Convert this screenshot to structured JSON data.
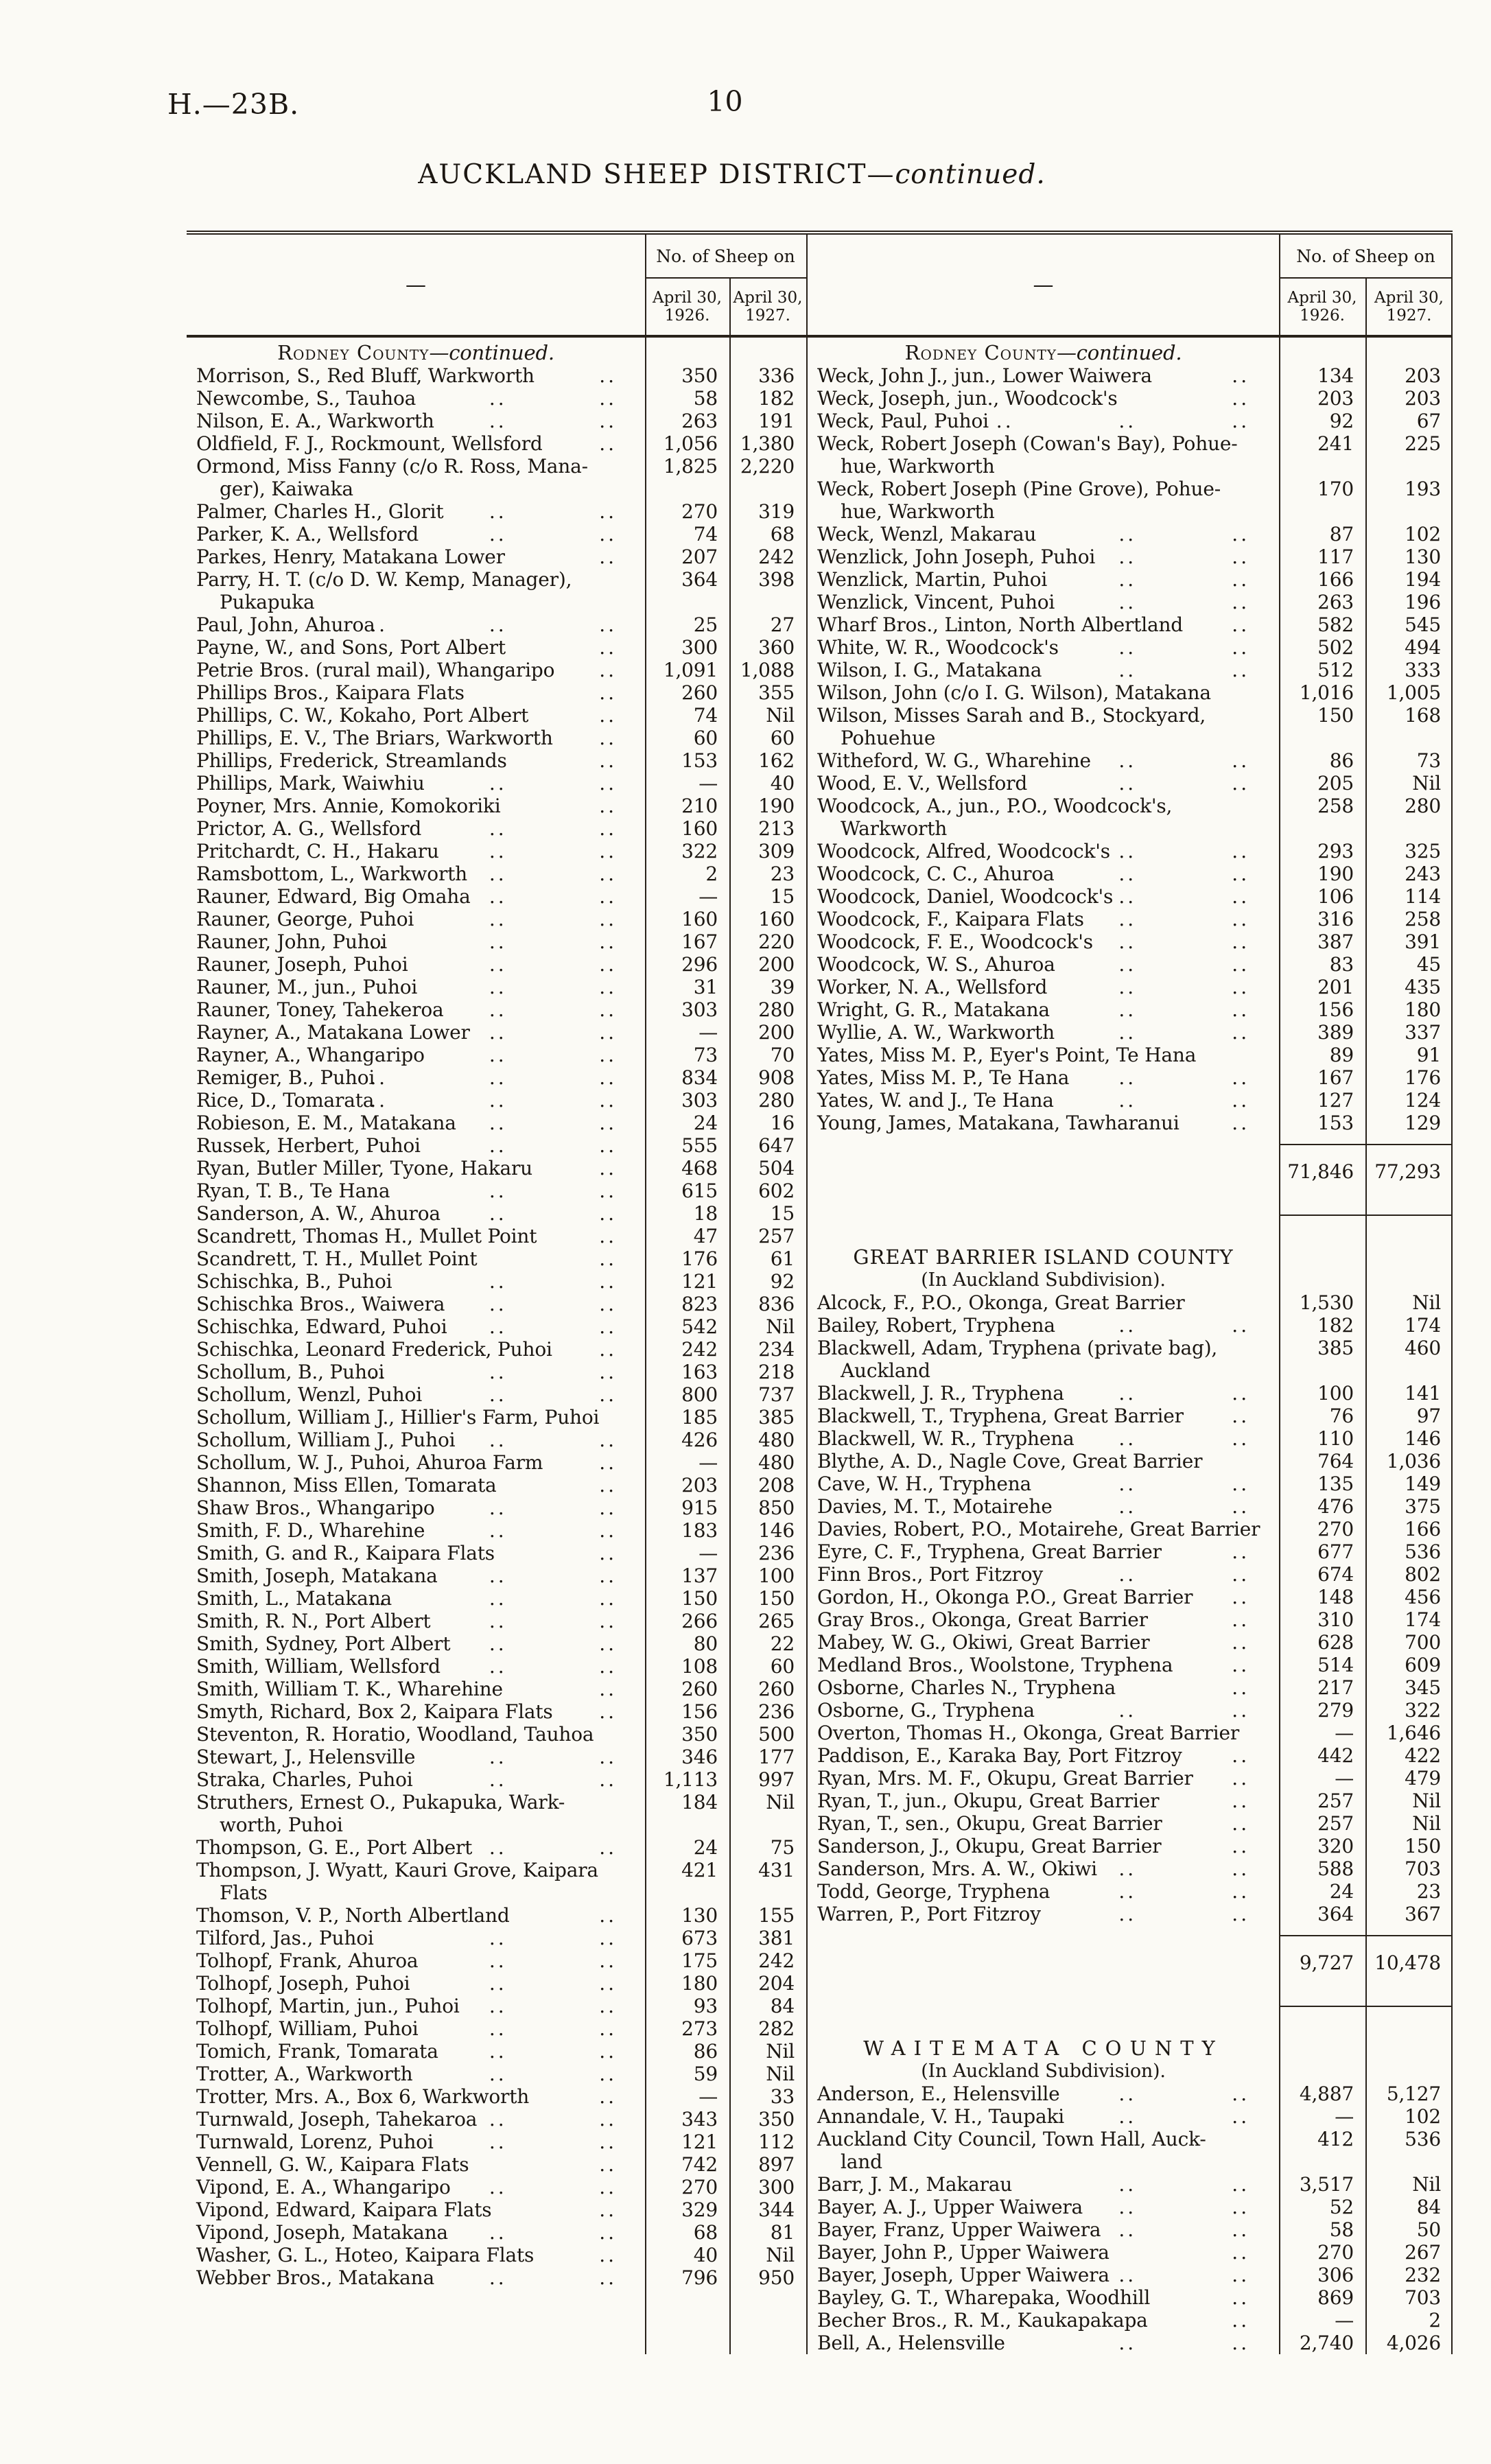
{
  "page": {
    "doc_number": "H.—23B.",
    "page_number": "10",
    "title_main": "AUCKLAND SHEEP DISTRICT—",
    "title_italic": "continued.",
    "header": {
      "name_placeholder": "—",
      "group_label": "No. of Sheep on",
      "col1": "April 30,\n1926.",
      "col2": "April 30,\n1927."
    },
    "leader_glyph": ".."
  },
  "left": {
    "sections": [
      {
        "heading": {
          "sc": "Rodney County",
          "cont": "—continued."
        },
        "rows": [
          [
            "Morrison, S., Red Bluff, Warkworth",
            "350",
            "336"
          ],
          [
            "Newcombe, S., Tauhoa",
            "58",
            "182"
          ],
          [
            "Nilson, E. A., Warkworth",
            "263",
            "191"
          ],
          [
            "Oldfield, F. J., Rockmount, Wellsford",
            "1,056",
            "1,380"
          ],
          [
            "Ormond, Miss Fanny (c/o R. Ross, Mana-\nger), Kaiwaka",
            "1,825",
            "2,220"
          ],
          [
            "Palmer, Charles H., Glorit",
            "270",
            "319"
          ],
          [
            "Parker, K. A., Wellsford",
            "74",
            "68"
          ],
          [
            "Parkes, Henry, Matakana Lower",
            "207",
            "242"
          ],
          [
            "Parry, H. T. (c/o D. W. Kemp, Manager),\nPukapuka",
            "364",
            "398"
          ],
          [
            "Paul, John, Ahuroa",
            "25",
            "27"
          ],
          [
            "Payne, W., and Sons, Port Albert",
            "300",
            "360"
          ],
          [
            "Petrie Bros. (rural mail), Whangaripo",
            "1,091",
            "1,088"
          ],
          [
            "Phillips Bros., Kaipara Flats",
            "260",
            "355"
          ],
          [
            "Phillips, C. W., Kokaho, Port Albert",
            "74",
            "Nil"
          ],
          [
            "Phillips, E. V., The Briars, Warkworth",
            "60",
            "60"
          ],
          [
            "Phillips, Frederick, Streamlands",
            "153",
            "162"
          ],
          [
            "Phillips, Mark, Waiwhiu",
            "—",
            "40"
          ],
          [
            "Poyner, Mrs. Annie, Komokoriki",
            "210",
            "190"
          ],
          [
            "Prictor, A. G., Wellsford",
            "160",
            "213"
          ],
          [
            "Pritchardt, C. H., Hakaru",
            "322",
            "309"
          ],
          [
            "Ramsbottom, L., Warkworth",
            "2",
            "23"
          ],
          [
            "Rauner, Edward, Big Omaha",
            "—",
            "15"
          ],
          [
            "Rauner, George, Puhoi",
            "160",
            "160"
          ],
          [
            "Rauner, John, Puhoi",
            "167",
            "220"
          ],
          [
            "Rauner, Joseph, Puhoi",
            "296",
            "200"
          ],
          [
            "Rauner, M., jun., Puhoi",
            "31",
            "39"
          ],
          [
            "Rauner, Toney, Tahekeroa",
            "303",
            "280"
          ],
          [
            "Rayner, A., Matakana Lower",
            "—",
            "200"
          ],
          [
            "Rayner, A., Whangaripo",
            "73",
            "70"
          ],
          [
            "Remiger, B., Puhoi",
            "834",
            "908"
          ],
          [
            "Rice, D., Tomarata",
            "303",
            "280"
          ],
          [
            "Robieson, E. M., Matakana",
            "24",
            "16"
          ],
          [
            "Russek, Herbert, Puhoi",
            "555",
            "647"
          ],
          [
            "Ryan, Butler Miller, Tyone, Hakaru",
            "468",
            "504"
          ],
          [
            "Ryan, T. B., Te Hana",
            "615",
            "602"
          ],
          [
            "Sanderson, A. W., Ahuroa",
            "18",
            "15"
          ],
          [
            "Scandrett, Thomas H., Mullet Point",
            "47",
            "257"
          ],
          [
            "Scandrett, T. H., Mullet Point",
            "176",
            "61"
          ],
          [
            "Schischka, B., Puhoi",
            "121",
            "92"
          ],
          [
            "Schischka Bros., Waiwera",
            "823",
            "836"
          ],
          [
            "Schischka, Edward, Puhoi",
            "542",
            "Nil"
          ],
          [
            "Schischka, Leonard Frederick, Puhoi",
            "242",
            "234"
          ],
          [
            "Schollum, B., Puhoi",
            "163",
            "218"
          ],
          [
            "Schollum, Wenzl, Puhoi",
            "800",
            "737"
          ],
          [
            "Schollum, William J., Hillier's Farm, Puhoi",
            "185",
            "385"
          ],
          [
            "Schollum, William J., Puhoi",
            "426",
            "480"
          ],
          [
            "Schollum, W. J., Puhoi, Ahuroa Farm",
            "—",
            "480"
          ],
          [
            "Shannon, Miss Ellen, Tomarata",
            "203",
            "208"
          ],
          [
            "Shaw Bros., Whangaripo",
            "915",
            "850"
          ],
          [
            "Smith, F. D., Wharehine",
            "183",
            "146"
          ],
          [
            "Smith, G. and R., Kaipara Flats",
            "—",
            "236"
          ],
          [
            "Smith, Joseph, Matakana",
            "137",
            "100"
          ],
          [
            "Smith, L., Matakana",
            "150",
            "150"
          ],
          [
            "Smith, R. N., Port Albert",
            "266",
            "265"
          ],
          [
            "Smith, Sydney, Port Albert",
            "80",
            "22"
          ],
          [
            "Smith, William, Wellsford",
            "108",
            "60"
          ],
          [
            "Smith, William T. K., Wharehine",
            "260",
            "260"
          ],
          [
            "Smyth, Richard, Box 2, Kaipara Flats",
            "156",
            "236"
          ],
          [
            "Steventon, R. Horatio, Woodland, Tauhoa",
            "350",
            "500"
          ],
          [
            "Stewart, J., Helensville",
            "346",
            "177"
          ],
          [
            "Straka, Charles, Puhoi",
            "1,113",
            "997"
          ],
          [
            "Struthers, Ernest O., Pukapuka, Wark-\nworth, Puhoi",
            "184",
            "Nil"
          ],
          [
            "Thompson, G. E., Port Albert",
            "24",
            "75"
          ],
          [
            "Thompson, J. Wyatt, Kauri Grove, Kaipara\nFlats",
            "421",
            "431"
          ],
          [
            "Thomson, V. P., North Albertland",
            "130",
            "155"
          ],
          [
            "Tilford, Jas., Puhoi",
            "673",
            "381"
          ],
          [
            "Tolhopf, Frank, Ahuroa",
            "175",
            "242"
          ],
          [
            "Tolhopf, Joseph, Puhoi",
            "180",
            "204"
          ],
          [
            "Tolhopf, Martin, jun., Puhoi",
            "93",
            "84"
          ],
          [
            "Tolhopf, William, Puhoi",
            "273",
            "282"
          ],
          [
            "Tomich, Frank, Tomarata",
            "86",
            "Nil"
          ],
          [
            "Trotter, A., Warkworth",
            "59",
            "Nil"
          ],
          [
            "Trotter, Mrs. A., Box 6, Warkworth",
            "—",
            "33"
          ],
          [
            "Turnwald, Joseph, Tahekaroa",
            "343",
            "350"
          ],
          [
            "Turnwald, Lorenz, Puhoi",
            "121",
            "112"
          ],
          [
            "Vennell, G. W., Kaipara Flats",
            "742",
            "897"
          ],
          [
            "Vipond, E. A., Whangaripo",
            "270",
            "300"
          ],
          [
            "Vipond, Edward, Kaipara Flats",
            "329",
            "344"
          ],
          [
            "Vipond, Joseph, Matakana",
            "68",
            "81"
          ],
          [
            "Washer, G. L., Hoteo, Kaipara Flats",
            "40",
            "Nil"
          ],
          [
            "Webber Bros., Matakana",
            "796",
            "950"
          ]
        ],
        "total": null
      }
    ]
  },
  "right": {
    "sections": [
      {
        "heading": {
          "sc": "Rodney County",
          "cont": "—continued."
        },
        "rows": [
          [
            "Weck, John J., jun., Lower Waiwera",
            "134",
            "203"
          ],
          [
            "Weck, Joseph, jun., Woodcock's",
            "203",
            "203"
          ],
          [
            "Weck, Paul, Puhoi",
            "92",
            "67"
          ],
          [
            "Weck, Robert Joseph (Cowan's Bay), Pohue-\nhue, Warkworth",
            "241",
            "225"
          ],
          [
            "Weck, Robert Joseph (Pine Grove), Pohue-\nhue, Warkworth",
            "170",
            "193"
          ],
          [
            "Weck, Wenzl, Makarau",
            "87",
            "102"
          ],
          [
            "Wenzlick, John Joseph, Puhoi",
            "117",
            "130"
          ],
          [
            "Wenzlick, Martin, Puhoi",
            "166",
            "194"
          ],
          [
            "Wenzlick, Vincent, Puhoi",
            "263",
            "196"
          ],
          [
            "Wharf Bros., Linton, North Albertland",
            "582",
            "545"
          ],
          [
            "White, W. R., Woodcock's",
            "502",
            "494"
          ],
          [
            "Wilson, I. G., Matakana",
            "512",
            "333"
          ],
          [
            "Wilson, John (c/o I. G. Wilson), Matakana",
            "1,016",
            "1,005"
          ],
          [
            "Wilson, Misses Sarah and B., Stockyard,\nPohuehue",
            "150",
            "168"
          ],
          [
            "Witheford, W. G., Wharehine",
            "86",
            "73"
          ],
          [
            "Wood, E. V., Wellsford",
            "205",
            "Nil"
          ],
          [
            "Woodcock, A., jun., P.O., Woodcock's,\nWarkworth",
            "258",
            "280"
          ],
          [
            "Woodcock, Alfred, Woodcock's",
            "293",
            "325"
          ],
          [
            "Woodcock, C. C., Ahuroa",
            "190",
            "243"
          ],
          [
            "Woodcock, Daniel, Woodcock's",
            "106",
            "114"
          ],
          [
            "Woodcock, F., Kaipara Flats",
            "316",
            "258"
          ],
          [
            "Woodcock, F. E., Woodcock's",
            "387",
            "391"
          ],
          [
            "Woodcock, W. S., Ahuroa",
            "83",
            "45"
          ],
          [
            "Worker, N. A., Wellsford",
            "201",
            "435"
          ],
          [
            "Wright, G. R., Matakana",
            "156",
            "180"
          ],
          [
            "Wyllie, A. W., Warkworth",
            "389",
            "337"
          ],
          [
            "Yates, Miss M. P., Eyer's Point, Te Hana",
            "89",
            "91"
          ],
          [
            "Yates, Miss M. P., Te Hana",
            "167",
            "176"
          ],
          [
            "Yates, W. and J., Te Hana",
            "127",
            "124"
          ],
          [
            "Young, James, Matakana, Tawharanui",
            "153",
            "129"
          ]
        ],
        "total": [
          "71,846",
          "77,293"
        ]
      },
      {
        "heading": {
          "caps": "GREAT BARRIER ISLAND COUNTY",
          "spaced": false
        },
        "subtitle": "(In Auckland Subdivision).",
        "rows": [
          [
            "Alcock, F., P.O., Okonga, Great Barrier",
            "1,530",
            "Nil"
          ],
          [
            "Bailey, Robert, Tryphena",
            "182",
            "174"
          ],
          [
            "Blackwell, Adam, Tryphena (private bag),\nAuckland",
            "385",
            "460"
          ],
          [
            "Blackwell, J. R., Tryphena",
            "100",
            "141"
          ],
          [
            "Blackwell, T., Tryphena, Great Barrier",
            "76",
            "97"
          ],
          [
            "Blackwell, W. R., Tryphena",
            "110",
            "146"
          ],
          [
            "Blythe, A. D., Nagle Cove, Great Barrier",
            "764",
            "1,036"
          ],
          [
            "Cave, W. H., Tryphena",
            "135",
            "149"
          ],
          [
            "Davies, M. T., Motairehe",
            "476",
            "375"
          ],
          [
            "Davies, Robert, P.O., Motairehe, Great Barrier",
            "270",
            "166"
          ],
          [
            "Eyre, C. F., Tryphena, Great Barrier",
            "677",
            "536"
          ],
          [
            "Finn Bros., Port Fitzroy",
            "674",
            "802"
          ],
          [
            "Gordon, H., Okonga P.O., Great Barrier",
            "148",
            "456"
          ],
          [
            "Gray Bros., Okonga, Great Barrier",
            "310",
            "174"
          ],
          [
            "Mabey, W. G., Okiwi, Great Barrier",
            "628",
            "700"
          ],
          [
            "Medland Bros., Woolstone, Tryphena",
            "514",
            "609"
          ],
          [
            "Osborne, Charles N., Tryphena",
            "217",
            "345"
          ],
          [
            "Osborne, G., Tryphena",
            "279",
            "322"
          ],
          [
            "Overton, Thomas H., Okonga, Great Barrier",
            "—",
            "1,646"
          ],
          [
            "Paddison, E., Karaka Bay, Port Fitzroy",
            "442",
            "422"
          ],
          [
            "Ryan, Mrs. M. F., Okupu, Great Barrier",
            "—",
            "479"
          ],
          [
            "Ryan, T., jun., Okupu, Great Barrier",
            "257",
            "Nil"
          ],
          [
            "Ryan, T., sen., Okupu, Great Barrier",
            "257",
            "Nil"
          ],
          [
            "Sanderson, J., Okupu, Great Barrier",
            "320",
            "150"
          ],
          [
            "Sanderson, Mrs. A. W., Okiwi",
            "588",
            "703"
          ],
          [
            "Todd, George, Tryphena",
            "24",
            "23"
          ],
          [
            "Warren, P., Port Fitzroy",
            "364",
            "367"
          ]
        ],
        "total": [
          "9,727",
          "10,478"
        ]
      },
      {
        "heading": {
          "caps": "WAITEMATA COUNTY",
          "spaced": true
        },
        "subtitle": "(In Auckland Subdivision).",
        "rows": [
          [
            "Anderson, E., Helensville",
            "4,887",
            "5,127"
          ],
          [
            "Annandale, V. H., Taupaki",
            "—",
            "102"
          ],
          [
            "Auckland City Council, Town Hall, Auck-\nland",
            "412",
            "536"
          ],
          [
            "Barr, J. M., Makarau",
            "3,517",
            "Nil"
          ],
          [
            "Bayer, A. J., Upper Waiwera",
            "52",
            "84"
          ],
          [
            "Bayer, Franz, Upper Waiwera",
            "58",
            "50"
          ],
          [
            "Bayer, John P., Upper Waiwera",
            "270",
            "267"
          ],
          [
            "Bayer, Joseph, Upper Waiwera",
            "306",
            "232"
          ],
          [
            "Bayley, G. T., Wharepaka, Woodhill",
            "869",
            "703"
          ],
          [
            "Becher Bros., R. M., Kaukapakapa",
            "—",
            "2"
          ],
          [
            "Bell, A., Helensville",
            "2,740",
            "4,026"
          ]
        ],
        "total": null
      }
    ]
  }
}
